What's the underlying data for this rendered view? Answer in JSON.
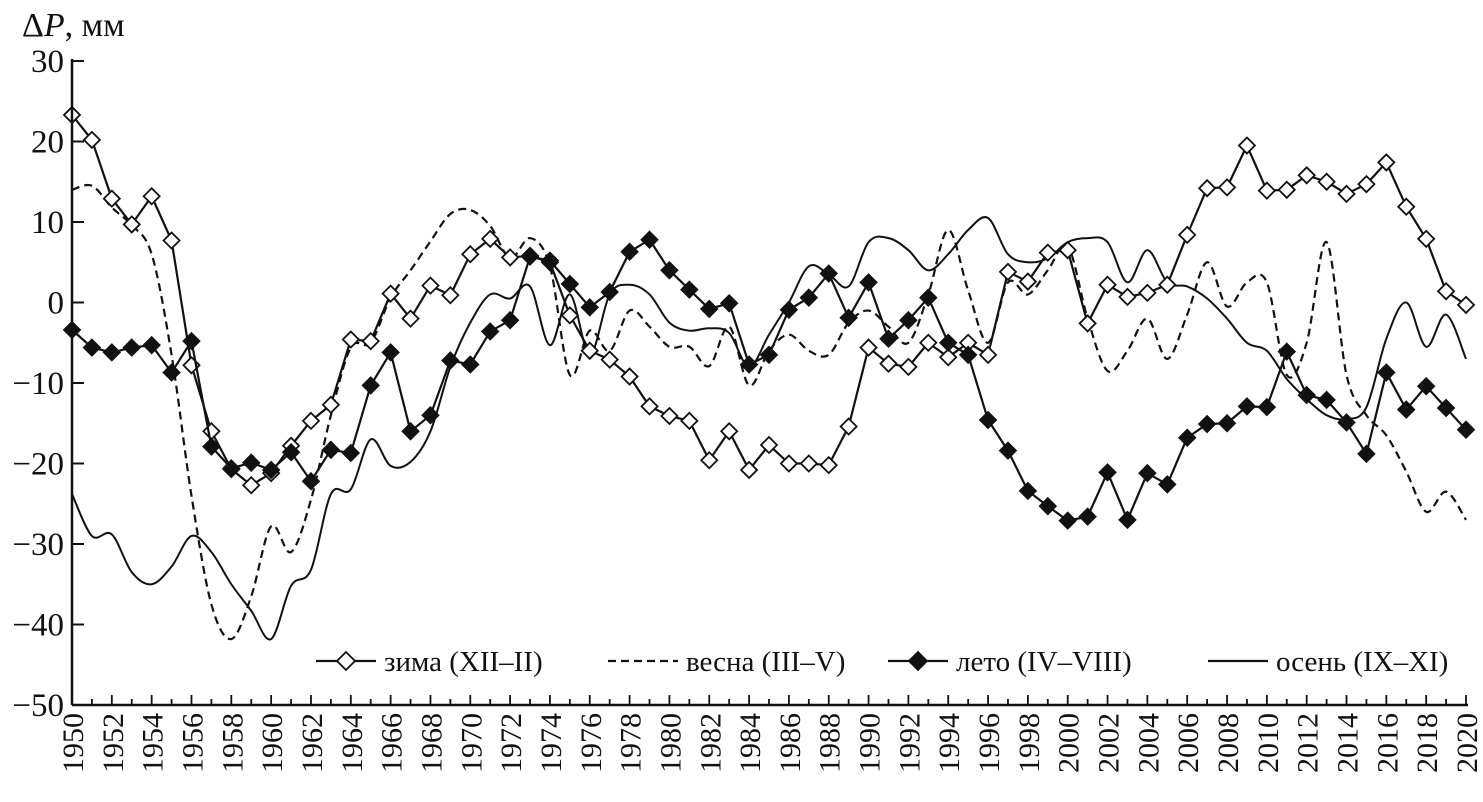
{
  "chart_data": {
    "type": "line",
    "title": "",
    "xlabel": "",
    "ylabel": "ΔP, мм",
    "ylabel_symbol": "P",
    "ylabel_unit": ", мм",
    "xlim": [
      1950,
      2020
    ],
    "ylim": [
      -50,
      30
    ],
    "yticks": [
      30,
      20,
      10,
      0,
      -10,
      -20,
      -30,
      -40,
      -50
    ],
    "ytick_labels": [
      "30",
      "20",
      "10",
      "0",
      "−10",
      "−20",
      "−30",
      "−40",
      "−50"
    ],
    "xtick_labels": [
      "1950",
      "1952",
      "1954",
      "1956",
      "1958",
      "1960",
      "1962",
      "1964",
      "1966",
      "1968",
      "1970",
      "1972",
      "1974",
      "1976",
      "1978",
      "1980",
      "1982",
      "1984",
      "1986",
      "1988",
      "1990",
      "1992",
      "1994",
      "1996",
      "1998",
      "2000",
      "2002",
      "2004",
      "2006",
      "2008",
      "2010",
      "2012",
      "2014",
      "2016",
      "2018",
      "2020"
    ],
    "legend_position": "bottom-right",
    "x": [
      1950,
      1951,
      1952,
      1953,
      1954,
      1955,
      1956,
      1957,
      1958,
      1959,
      1960,
      1961,
      1962,
      1963,
      1964,
      1965,
      1966,
      1967,
      1968,
      1969,
      1970,
      1971,
      1972,
      1973,
      1974,
      1975,
      1976,
      1977,
      1978,
      1979,
      1980,
      1981,
      1982,
      1983,
      1984,
      1985,
      1986,
      1987,
      1988,
      1989,
      1990,
      1991,
      1992,
      1993,
      1994,
      1995,
      1996,
      1997,
      1998,
      1999,
      2000,
      2001,
      2002,
      2003,
      2004,
      2005,
      2006,
      2007,
      2008,
      2009,
      2010,
      2011,
      2012,
      2013,
      2014,
      2015,
      2016,
      2017,
      2018,
      2019,
      2020
    ],
    "series": [
      {
        "name": "зима (XII–II)",
        "style": "line-open-diamond",
        "values": [
          23.3,
          20.2,
          12.9,
          9.7,
          13.2,
          7.7,
          -7.8,
          -16.0,
          -20.7,
          -22.7,
          -21.2,
          -17.8,
          -14.7,
          -12.7,
          -4.6,
          -4.8,
          1.1,
          -2.0,
          2.1,
          0.9,
          6.0,
          7.9,
          5.6,
          5.8,
          5.0,
          -1.6,
          -6.0,
          -7.1,
          -9.2,
          -12.9,
          -14.1,
          -14.7,
          -19.6,
          -16.0,
          -20.8,
          -17.7,
          -20.0,
          -20.0,
          -20.2,
          -15.4,
          -5.6,
          -7.6,
          -8.0,
          -5.0,
          -6.8,
          -5.0,
          -6.5,
          3.8,
          2.6,
          6.2,
          6.5,
          -2.6,
          2.2,
          0.7,
          1.2,
          2.2,
          8.4,
          14.2,
          14.3,
          19.5,
          13.9,
          14.0,
          15.8,
          15.0,
          13.5,
          14.7,
          17.4,
          11.9,
          7.9,
          1.4,
          -0.3
        ]
      },
      {
        "name": "весна (III–V)",
        "style": "dashed",
        "values": [
          14.0,
          14.5,
          11.8,
          9.6,
          6.0,
          -6.5,
          -24.0,
          -37.5,
          -41.8,
          -36.5,
          -27.8,
          -31.0,
          -24.5,
          -14.0,
          -5.6,
          -5.0,
          0.6,
          4.0,
          7.6,
          11.0,
          11.5,
          9.5,
          5.5,
          8.0,
          4.5,
          -9.0,
          -3.5,
          -6.0,
          -1.0,
          -3.0,
          -5.5,
          -5.5,
          -7.9,
          -3.0,
          -10.3,
          -6.0,
          -4.0,
          -6.0,
          -6.5,
          -2.5,
          -1.0,
          -3.0,
          -5.0,
          1.0,
          9.0,
          1.5,
          -5.0,
          2.5,
          1.0,
          4.0,
          7.0,
          -2.0,
          -8.5,
          -6.0,
          -2.0,
          -7.0,
          -1.5,
          5.0,
          -0.5,
          2.5,
          2.5,
          -9.0,
          -5.0,
          7.5,
          -9.0,
          -14.0,
          -16.5,
          -21.0,
          -26.0,
          -23.5,
          -27.0
        ]
      },
      {
        "name": "лето (IV–VIII)",
        "style": "line-filled-diamond",
        "values": [
          -3.4,
          -5.6,
          -6.2,
          -5.6,
          -5.3,
          -8.7,
          -4.8,
          -17.9,
          -20.6,
          -19.9,
          -20.8,
          -18.6,
          -22.2,
          -18.3,
          -18.7,
          -10.3,
          -6.2,
          -16.0,
          -14.0,
          -7.2,
          -7.7,
          -3.6,
          -2.2,
          5.7,
          5.2,
          2.3,
          -0.6,
          1.3,
          6.3,
          7.8,
          4.0,
          1.6,
          -0.8,
          -0.1,
          -7.7,
          -6.5,
          -0.9,
          0.6,
          3.6,
          -1.9,
          2.5,
          -4.5,
          -2.2,
          0.6,
          -5.0,
          -6.5,
          -14.6,
          -18.4,
          -23.4,
          -25.3,
          -27.1,
          -26.6,
          -21.1,
          -27.0,
          -21.2,
          -22.6,
          -16.8,
          -15.1,
          -15.0,
          -12.9,
          -13.0,
          -6.1,
          -11.5,
          -12.1,
          -14.9,
          -18.8,
          -8.7,
          -13.3,
          -10.4,
          -13.1,
          -15.8
        ]
      },
      {
        "name": "осень (IX–XI)",
        "style": "solid",
        "values": [
          -23.8,
          -29.0,
          -28.8,
          -33.5,
          -35.0,
          -32.8,
          -29.0,
          -31.0,
          -35.0,
          -38.3,
          -41.8,
          -35.2,
          -33.2,
          -23.8,
          -23.2,
          -17.0,
          -20.3,
          -19.8,
          -16.0,
          -8.0,
          -2.5,
          1.0,
          0.5,
          2.0,
          -5.3,
          1.0,
          -6.5,
          1.0,
          2.2,
          1.0,
          -2.5,
          -3.5,
          -3.2,
          -3.8,
          -8.0,
          -4.0,
          0.0,
          4.5,
          3.5,
          2.0,
          7.5,
          8.0,
          6.5,
          4.0,
          6.0,
          9.0,
          10.5,
          6.0,
          5.0,
          5.5,
          7.5,
          8.0,
          7.5,
          2.5,
          6.5,
          2.5,
          2.0,
          0.5,
          -2.0,
          -5.0,
          -6.0,
          -9.5,
          -12.0,
          -14.0,
          -14.5,
          -13.0,
          -4.5,
          0.0,
          -5.5,
          -1.5,
          -7.0
        ]
      }
    ]
  }
}
